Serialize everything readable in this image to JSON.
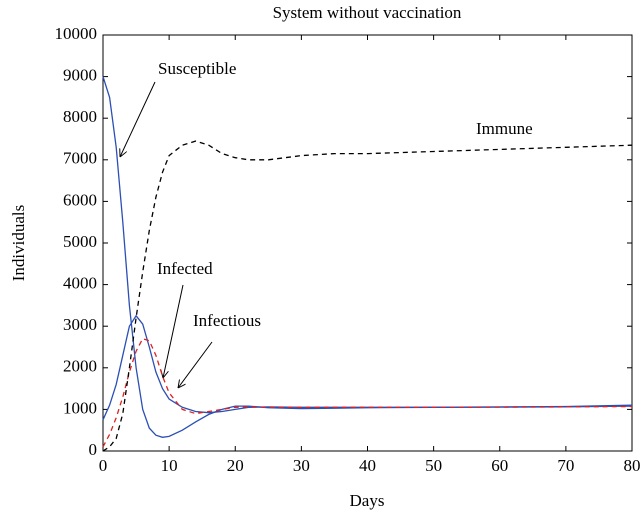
{
  "chart_data": {
    "type": "line",
    "title": "System without vaccination",
    "x_label": "Days",
    "y_label": "Individuals",
    "x": [
      0,
      1,
      2,
      3,
      4,
      5,
      6,
      7,
      8,
      9,
      10,
      12,
      14,
      16,
      18,
      20,
      22,
      25,
      30,
      35,
      40,
      50,
      60,
      70,
      80
    ],
    "series": [
      {
        "name": "Susceptible",
        "color": "#2b4fb5",
        "dash": "solid",
        "values": [
          9000,
          8500,
          7300,
          5500,
          3500,
          2000,
          1000,
          550,
          380,
          330,
          350,
          500,
          700,
          880,
          1000,
          1080,
          1080,
          1040,
          1020,
          1030,
          1040,
          1050,
          1060,
          1070,
          1100
        ]
      },
      {
        "name": "Infected",
        "color": "#2b4fb5",
        "dash": "solid",
        "values": [
          750,
          1100,
          1600,
          2300,
          3000,
          3250,
          3050,
          2500,
          1900,
          1500,
          1250,
          1050,
          950,
          920,
          950,
          1000,
          1050,
          1060,
          1050,
          1050,
          1050,
          1050,
          1055,
          1060,
          1080
        ]
      },
      {
        "name": "Infectious",
        "color": "#e02020",
        "dash": "dashed",
        "values": [
          100,
          400,
          800,
          1300,
          1900,
          2400,
          2700,
          2650,
          2300,
          1800,
          1400,
          1000,
          900,
          950,
          1000,
          1050,
          1060,
          1050,
          1050,
          1050,
          1050,
          1050,
          1055,
          1060,
          1070
        ]
      },
      {
        "name": "Immune",
        "color": "#000000",
        "dash": "dashed",
        "values": [
          0,
          100,
          300,
          900,
          2000,
          3200,
          4300,
          5300,
          6100,
          6700,
          7100,
          7350,
          7450,
          7350,
          7150,
          7050,
          7000,
          7000,
          7100,
          7150,
          7150,
          7200,
          7250,
          7300,
          7350
        ]
      }
    ],
    "annotations": [
      "Susceptible",
      "Immune",
      "Infected",
      "Infectious"
    ],
    "xlim": [
      0,
      80
    ],
    "xticks": [
      0,
      10,
      20,
      30,
      40,
      50,
      60,
      70,
      80
    ],
    "ylim": [
      0,
      10000
    ],
    "yticks": [
      0,
      1000,
      2000,
      3000,
      4000,
      5000,
      6000,
      7000,
      8000,
      9000,
      10000
    ]
  }
}
